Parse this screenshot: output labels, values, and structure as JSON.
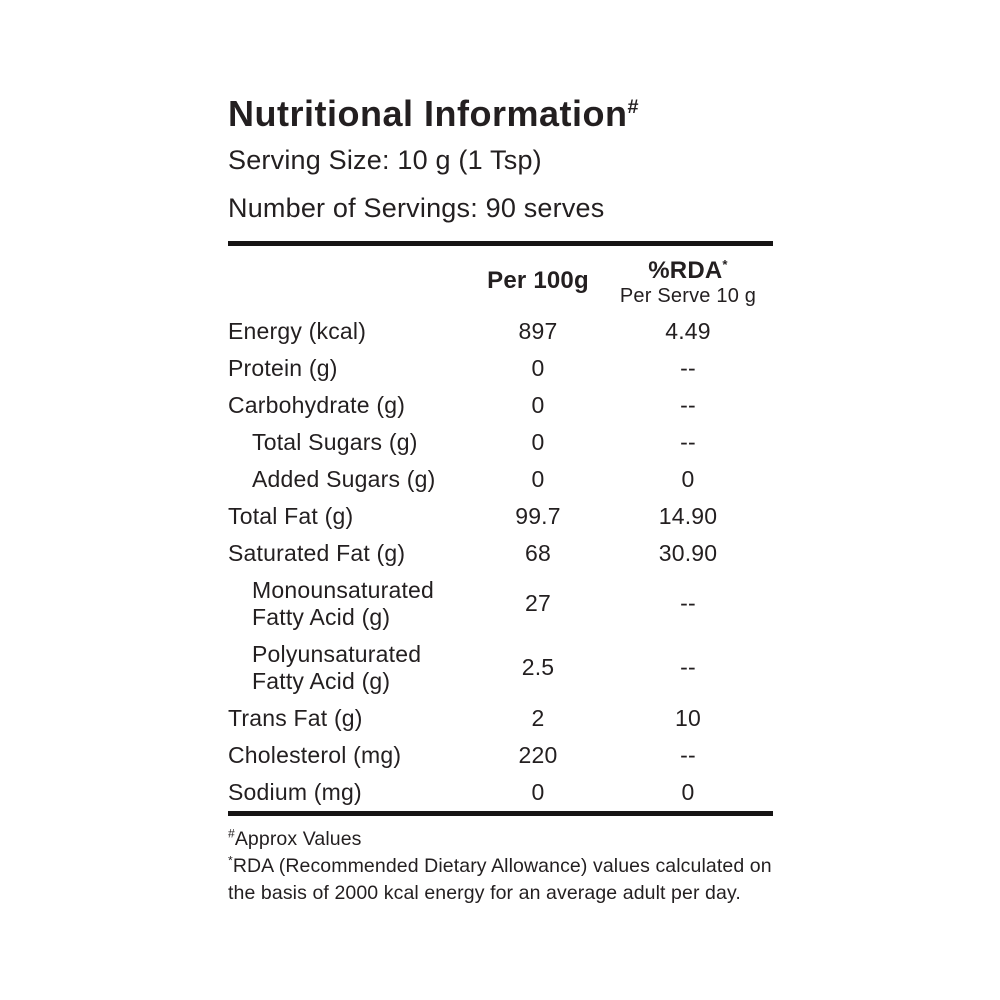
{
  "header": {
    "title": "Nutritional Information",
    "title_superscript": "#",
    "serving_size": "Serving Size: 10 g (1 Tsp)",
    "number_of_servings": "Number of Servings: 90 serves"
  },
  "table": {
    "columns": {
      "per_100g": "Per 100g",
      "rda": "%RDA",
      "rda_superscript": "*",
      "rda_subheader": "Per Serve 10 g"
    },
    "rows": [
      {
        "label": "Energy (kcal)",
        "per_100g": "897",
        "rda": "4.49",
        "indent": false,
        "wrap": false
      },
      {
        "label": "Protein (g)",
        "per_100g": "0",
        "rda": "--",
        "indent": false,
        "wrap": false
      },
      {
        "label": "Carbohydrate (g)",
        "per_100g": "0",
        "rda": "--",
        "indent": false,
        "wrap": false
      },
      {
        "label": "Total Sugars (g)",
        "per_100g": "0",
        "rda": "--",
        "indent": true,
        "wrap": false
      },
      {
        "label": "Added Sugars (g)",
        "per_100g": "0",
        "rda": "0",
        "indent": true,
        "wrap": false
      },
      {
        "label": "Total Fat (g)",
        "per_100g": "99.7",
        "rda": "14.90",
        "indent": false,
        "wrap": false
      },
      {
        "label": "Saturated Fat (g)",
        "per_100g": "68",
        "rda": "30.90",
        "indent": false,
        "wrap": false
      },
      {
        "label": "Monounsaturated Fatty Acid (g)",
        "per_100g": "27",
        "rda": "--",
        "indent": true,
        "wrap": true
      },
      {
        "label": "Polyunsaturated Fatty Acid (g)",
        "per_100g": "2.5",
        "rda": "--",
        "indent": true,
        "wrap": true
      },
      {
        "label": "Trans Fat (g)",
        "per_100g": "2",
        "rda": "10",
        "indent": false,
        "wrap": false
      },
      {
        "label": "Cholesterol (mg)",
        "per_100g": "220",
        "rda": "--",
        "indent": false,
        "wrap": false
      },
      {
        "label": "Sodium (mg)",
        "per_100g": "0",
        "rda": "0",
        "indent": false,
        "wrap": false
      }
    ]
  },
  "footnotes": {
    "approx_superscript": "#",
    "approx_text": "Approx Values",
    "rda_superscript": "*",
    "rda_text": "RDA (Recommended Dietary Allowance) values calculated on the basis of 2000 kcal energy for an average adult per day."
  },
  "colors": {
    "text": "#231f20",
    "rule": "#161414",
    "background": "#ffffff"
  }
}
